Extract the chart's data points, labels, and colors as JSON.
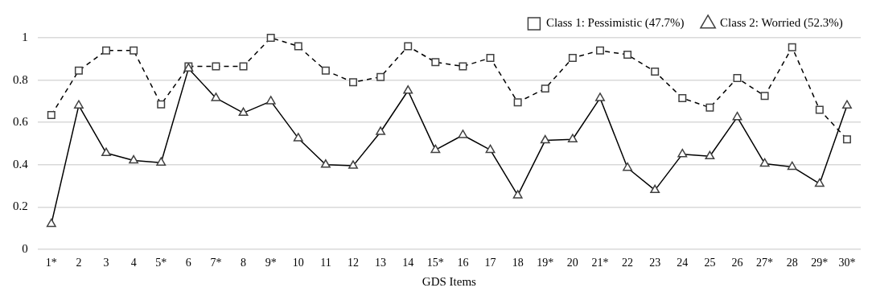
{
  "chart_data": {
    "type": "line",
    "xlabel": "GDS Items",
    "categories": [
      "1*",
      "2",
      "3",
      "4",
      "5*",
      "6",
      "7*",
      "8",
      "9*",
      "10",
      "11",
      "12",
      "13",
      "14",
      "15*",
      "16",
      "17",
      "18",
      "19*",
      "20",
      "21*",
      "22",
      "23",
      "24",
      "25",
      "26",
      "27*",
      "28",
      "29*",
      "30*"
    ],
    "series": [
      {
        "name": "Class 1: Pessimistic (47.7%)",
        "color": "#000000",
        "marker": "square",
        "line_style": "dashed",
        "values": [
          0.635,
          0.845,
          0.94,
          0.94,
          0.685,
          0.865,
          0.865,
          0.865,
          1.0,
          0.96,
          0.845,
          0.79,
          0.815,
          0.96,
          0.885,
          0.865,
          0.905,
          0.695,
          0.76,
          0.905,
          0.94,
          0.92,
          0.84,
          0.715,
          0.67,
          0.81,
          0.725,
          0.955,
          0.66,
          0.52
        ]
      },
      {
        "name": "Class 2: Worried (52.3%)",
        "color": "#000000",
        "marker": "triangle",
        "line_style": "solid",
        "values": [
          0.12,
          0.68,
          0.455,
          0.42,
          0.41,
          0.855,
          0.715,
          0.645,
          0.7,
          0.525,
          0.4,
          0.395,
          0.555,
          0.75,
          0.47,
          0.54,
          0.47,
          0.255,
          0.515,
          0.52,
          0.715,
          0.385,
          0.28,
          0.45,
          0.44,
          0.625,
          0.405,
          0.39,
          0.31,
          0.68
        ]
      }
    ],
    "ylim": [
      0,
      1
    ],
    "yticks": [
      0,
      0.2,
      0.4,
      0.6,
      0.8,
      1
    ],
    "grid": "y",
    "legend": "top right"
  }
}
